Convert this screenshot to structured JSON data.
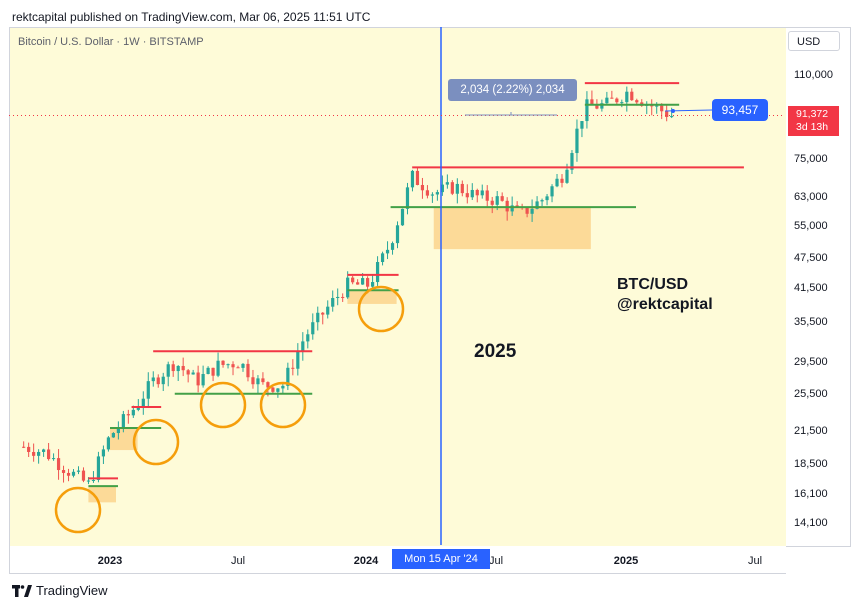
{
  "header": {
    "published": "rektcapital published on TradingView.com, Mar 06, 2025 11:51 UTC"
  },
  "symbol_title": "Bitcoin / U.S. Dollar · 1W · BITSTAMP",
  "currency_button": "USD",
  "brand": {
    "name": "TradingView",
    "icon": "tradingview-logo-icon"
  },
  "colors": {
    "background": "#fefbd8",
    "up": "#26a69a",
    "down": "#ef5350",
    "resistance": "#f23645",
    "support": "#43a047",
    "zone": "#fbd38d",
    "circle": "#f59e0b",
    "vertical": "#2962ff"
  },
  "chart_data": {
    "type": "candlestick",
    "title": "Bitcoin / U.S. Dollar · 1W · BITSTAMP",
    "y_scale": "log",
    "y_ticks": [
      "110,000",
      "75,000",
      "63,000",
      "55,000",
      "47,500",
      "41,500",
      "35,500",
      "29,500",
      "25,500",
      "21,500",
      "18,500",
      "16,100",
      "14,100"
    ],
    "x_ticks": [
      {
        "label": "2023",
        "bold": true
      },
      {
        "label": "Jul",
        "bold": false
      },
      {
        "label": "2024",
        "bold": true
      },
      {
        "label": "Jul",
        "bold": false
      },
      {
        "label": "2025",
        "bold": true
      },
      {
        "label": "Jul",
        "bold": false
      }
    ],
    "current_price": "91,372",
    "time_to_close": "3d 13h",
    "vertical_marker_label": "Mon 15 Apr '24",
    "measure_label": "2,034 (2.22%) 2,034",
    "price_callout": "93,457",
    "annotations": {
      "year": "2025",
      "pair": "BTC/USD",
      "handle": "@rektcapital"
    },
    "levels": [
      {
        "kind": "resistance",
        "price": 17300,
        "from": "2022-12",
        "to": "2023-01"
      },
      {
        "kind": "support",
        "price": 16700,
        "from": "2022-12",
        "to": "2023-01"
      },
      {
        "kind": "resistance",
        "price": 24000,
        "from": "2023-02",
        "to": "2023-03"
      },
      {
        "kind": "support",
        "price": 21800,
        "from": "2023-01",
        "to": "2023-03"
      },
      {
        "kind": "resistance",
        "price": 31000,
        "from": "2023-03",
        "to": "2023-10"
      },
      {
        "kind": "support",
        "price": 25500,
        "from": "2023-04",
        "to": "2023-10"
      },
      {
        "kind": "resistance",
        "price": 44000,
        "from": "2023-12",
        "to": "2024-02"
      },
      {
        "kind": "support",
        "price": 41000,
        "from": "2023-12",
        "to": "2024-02"
      },
      {
        "kind": "resistance",
        "price": 72000,
        "from": "2024-03",
        "to": "2025-06"
      },
      {
        "kind": "support",
        "price": 60000,
        "from": "2024-02",
        "to": "2025-01"
      },
      {
        "kind": "resistance",
        "price": 106000,
        "from": "2024-11",
        "to": "2025-03"
      },
      {
        "kind": "support",
        "price": 96000,
        "from": "2024-11",
        "to": "2025-03"
      }
    ],
    "demand_zones": [
      {
        "from": "2022-12",
        "to": "2023-01",
        "low": 15500,
        "high": 16700
      },
      {
        "from": "2023-01",
        "to": "2023-02",
        "low": 19700,
        "high": 21800
      },
      {
        "from": "2023-12",
        "to": "2024-02",
        "low": 38500,
        "high": 41000
      },
      {
        "from": "2024-04",
        "to": "2024-11",
        "low": 49500,
        "high": 60000
      }
    ],
    "grid": false
  }
}
